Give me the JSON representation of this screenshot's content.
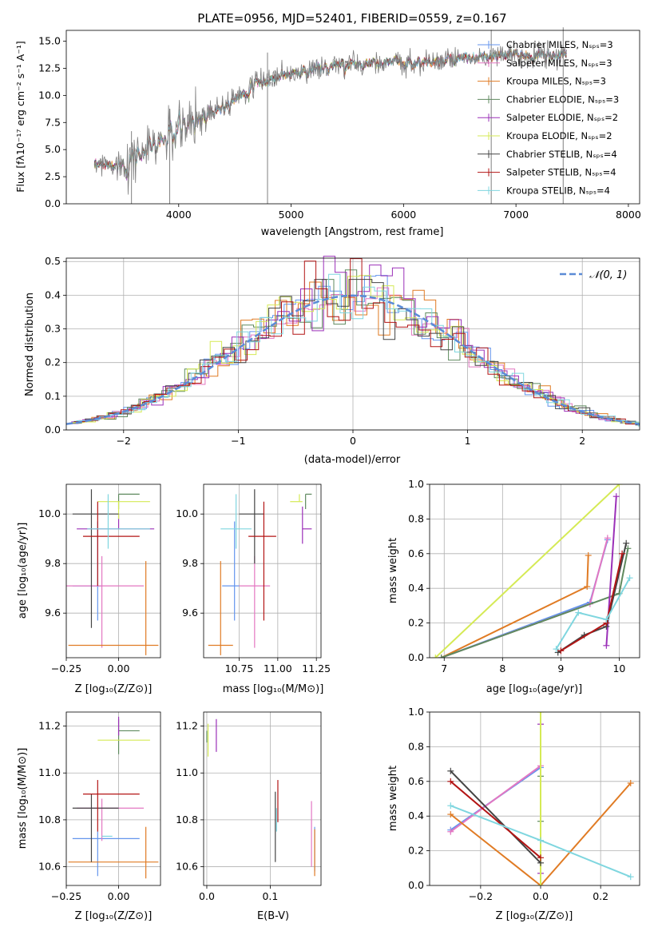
{
  "colors": {
    "miles_chabrier": "#6495ed",
    "miles_salpeter": "#e377c2",
    "miles_kroupa": "#e07b24",
    "elodie_chabrier": "#5f8a5f",
    "elodie_salpeter": "#9b30b8",
    "elodie_kroupa": "#d5ea55",
    "stelib_chabrier": "#444444",
    "stelib_salpeter": "#b31515",
    "stelib_kroupa": "#7fd6df",
    "data": "#808080",
    "normal": "#5b8bd6"
  },
  "chart_data": [
    {
      "id": "spectrum",
      "type": "line",
      "title": "PLATE=0956, MJD=52401, FIBERID=0559, z=0.167",
      "xlabel": "wavelength [Angstrom, rest frame]",
      "ylabel": "Flux [fλ10⁻¹⁷ erg cm⁻² s⁻¹ A⁻¹]",
      "xlim": [
        3000,
        8100
      ],
      "ylim": [
        0,
        16
      ],
      "xticks": [
        4000,
        5000,
        6000,
        7000,
        8000
      ],
      "yticks": [
        0.0,
        2.5,
        5.0,
        7.5,
        10.0,
        12.5,
        15.0
      ],
      "legend_position": "top-right",
      "legend": [
        {
          "label": "Chabrier MILES, Nₛₚₛ=3",
          "color": "#6495ed"
        },
        {
          "label": "Salpeter MILES, Nₛₚₛ=3",
          "color": "#e377c2"
        },
        {
          "label": "Kroupa MILES, Nₛₚₛ=3",
          "color": "#e07b24"
        },
        {
          "label": "Chabrier ELODIE, Nₛₚₛ=3",
          "color": "#5f8a5f"
        },
        {
          "label": "Salpeter ELODIE, Nₛₚₛ=2",
          "color": "#9b30b8"
        },
        {
          "label": "Kroupa ELODIE, Nₛₚₛ=2",
          "color": "#d5ea55"
        },
        {
          "label": "Chabrier STELIB, Nₛₚₛ=4",
          "color": "#444444"
        },
        {
          "label": "Salpeter STELIB, Nₛₚₛ=4",
          "color": "#b31515"
        },
        {
          "label": "Kroupa STELIB, Nₛₚₛ=4",
          "color": "#7fd6df"
        }
      ],
      "continuum": {
        "x": [
          3250,
          3400,
          3550,
          3700,
          3850,
          4000,
          4200,
          4400,
          4600,
          4800,
          5000,
          5200,
          5500,
          5800,
          6100,
          6400,
          6700,
          7000,
          7200,
          7450
        ],
        "y": [
          3.5,
          3.6,
          4.0,
          5.0,
          5.8,
          6.8,
          8.0,
          9.2,
          10.5,
          11.5,
          12.0,
          12.4,
          12.8,
          13.1,
          13.0,
          13.2,
          13.5,
          13.7,
          13.6,
          13.8
        ]
      },
      "spikes": [
        3580,
        3920,
        4790,
        6780,
        7420
      ]
    },
    {
      "id": "residuals",
      "type": "bar",
      "xlabel": "(data-model)/error",
      "ylabel": "Normed distribution",
      "xlim": [
        -2.5,
        2.5
      ],
      "ylim": [
        0,
        0.51
      ],
      "xticks": [
        -2,
        -1,
        0,
        1,
        2
      ],
      "yticks": [
        0.0,
        0.1,
        0.2,
        0.3,
        0.4,
        0.5
      ],
      "legend": [
        {
          "label": "𝒩(0, 1)",
          "color": "#5b8bd6"
        }
      ],
      "legend_position": "top-right",
      "bin_width": 0.1,
      "bin_start": -2.5
    },
    {
      "id": "age-vs-Z",
      "type": "scatter",
      "xlabel": "Z [log₁₀(Z/Z⊙)]",
      "ylabel": "age  [log₁₀(age/yr)]",
      "xlim": [
        -0.25,
        0.2
      ],
      "ylim": [
        9.42,
        10.12
      ],
      "xticks": [
        -0.25,
        0.0
      ],
      "yticks": [
        9.6,
        9.8,
        10.0
      ],
      "points": [
        {
          "series": "Chabrier MILES",
          "x": -0.1,
          "xerr": [
            0.12,
            0.02
          ],
          "y": 9.71,
          "yerr": [
            0.14,
            0.26
          ]
        },
        {
          "series": "Salpeter MILES",
          "x": -0.08,
          "xerr": [
            0.2,
            0.2
          ],
          "y": 9.71,
          "yerr": [
            0.25,
            0.12
          ]
        },
        {
          "series": "Kroupa MILES",
          "x": 0.13,
          "xerr": [
            0.37,
            0.06
          ],
          "y": 9.47,
          "yerr": [
            0.04,
            0.34
          ]
        },
        {
          "series": "Chabrier ELODIE",
          "x": 0.0,
          "xerr": [
            0.0,
            0.1
          ],
          "y": 10.08,
          "yerr": [
            0.06,
            0.0
          ]
        },
        {
          "series": "Salpeter ELODIE",
          "x": 0.0,
          "xerr": [
            0.2,
            0.17
          ],
          "y": 9.94,
          "yerr": [
            0.0,
            0.06
          ]
        },
        {
          "series": "Kroupa ELODIE",
          "x": 0.0,
          "xerr": [
            0.1,
            0.15
          ],
          "y": 10.05,
          "yerr": [
            0.07,
            0.0
          ]
        },
        {
          "series": "Chabrier STELIB",
          "x": -0.13,
          "xerr": [
            0.09,
            0.13
          ],
          "y": 10.0,
          "yerr": [
            0.46,
            0.1
          ]
        },
        {
          "series": "Salpeter STELIB",
          "x": -0.1,
          "xerr": [
            0.07,
            0.2
          ],
          "y": 9.91,
          "yerr": [
            0.2,
            0.14
          ]
        },
        {
          "series": "Kroupa STELIB",
          "x": -0.05,
          "xerr": [
            0.1,
            0.2
          ],
          "y": 9.94,
          "yerr": [
            0.08,
            0.14
          ]
        }
      ]
    },
    {
      "id": "age-vs-mass",
      "type": "scatter",
      "xlabel": "mass [log₁₀(M/M⊙)]",
      "ylabel": "",
      "xlim": [
        10.52,
        11.28
      ],
      "ylim": [
        9.42,
        10.12
      ],
      "xticks": [
        10.75,
        11.0,
        11.25
      ],
      "yticks": [
        9.6,
        9.8,
        10.0
      ],
      "points": [
        {
          "series": "Chabrier MILES",
          "x": 10.72,
          "xerr": [
            0.08,
            0.03
          ],
          "y": 9.71,
          "yerr": [
            0.14,
            0.26
          ]
        },
        {
          "series": "Salpeter MILES",
          "x": 10.85,
          "xerr": [
            0.1,
            0.1
          ],
          "y": 9.71,
          "yerr": [
            0.25,
            0.12
          ]
        },
        {
          "series": "Kroupa MILES",
          "x": 10.63,
          "xerr": [
            0.08,
            0.08
          ],
          "y": 9.47,
          "yerr": [
            0.04,
            0.34
          ]
        },
        {
          "series": "Chabrier ELODIE",
          "x": 11.18,
          "xerr": [
            0.0,
            0.04
          ],
          "y": 10.08,
          "yerr": [
            0.06,
            0.0
          ]
        },
        {
          "series": "Salpeter ELODIE",
          "x": 11.16,
          "xerr": [
            0.0,
            0.06
          ],
          "y": 9.94,
          "yerr": [
            0.06,
            0.09
          ]
        },
        {
          "series": "Kroupa ELODIE",
          "x": 11.14,
          "xerr": [
            0.06,
            0.02
          ],
          "y": 10.05,
          "yerr": [
            0.0,
            0.03
          ]
        },
        {
          "series": "Chabrier STELIB",
          "x": 10.85,
          "xerr": [
            0.1,
            0.06
          ],
          "y": 10.0,
          "yerr": [
            0.2,
            0.1
          ]
        },
        {
          "series": "Salpeter STELIB",
          "x": 10.91,
          "xerr": [
            0.1,
            0.08
          ],
          "y": 9.91,
          "yerr": [
            0.34,
            0.14
          ]
        },
        {
          "series": "Kroupa STELIB",
          "x": 10.73,
          "xerr": [
            0.1,
            0.1
          ],
          "y": 9.94,
          "yerr": [
            0.08,
            0.14
          ]
        }
      ]
    },
    {
      "id": "massweight-vs-age",
      "type": "line",
      "xlabel": "age  [log₁₀(age/yr)]",
      "ylabel": "mass weight",
      "xlim": [
        6.75,
        10.35
      ],
      "ylim": [
        0,
        1
      ],
      "xticks": [
        7,
        8,
        9,
        10
      ],
      "yticks": [
        0.0,
        0.2,
        0.4,
        0.6,
        0.8,
        1.0
      ],
      "series": [
        {
          "name": "Chabrier MILES",
          "points": [
            [
              6.95,
              0.0
            ],
            [
              9.5,
              0.32
            ],
            [
              9.8,
              0.68
            ]
          ]
        },
        {
          "name": "Salpeter MILES",
          "points": [
            [
              6.95,
              0.0
            ],
            [
              9.5,
              0.31
            ],
            [
              9.8,
              0.69
            ]
          ]
        },
        {
          "name": "Kroupa MILES",
          "points": [
            [
              6.95,
              0.0
            ],
            [
              9.45,
              0.41
            ],
            [
              9.47,
              0.59
            ]
          ]
        },
        {
          "name": "Chabrier ELODIE",
          "points": [
            [
              6.95,
              0.0
            ],
            [
              10.0,
              0.37
            ],
            [
              10.15,
              0.63
            ]
          ]
        },
        {
          "name": "Salpeter ELODIE",
          "points": [
            [
              9.78,
              0.07
            ],
            [
              9.95,
              0.93
            ]
          ]
        },
        {
          "name": "Kroupa ELODIE",
          "points": [
            [
              6.85,
              0.0
            ],
            [
              10.0,
              1.0
            ]
          ]
        },
        {
          "name": "Chabrier STELIB",
          "points": [
            [
              8.95,
              0.03
            ],
            [
              9.4,
              0.13
            ],
            [
              9.78,
              0.18
            ],
            [
              10.12,
              0.66
            ]
          ]
        },
        {
          "name": "Salpeter STELIB",
          "points": [
            [
              9.0,
              0.04
            ],
            [
              9.78,
              0.2
            ],
            [
              10.05,
              0.6
            ]
          ]
        },
        {
          "name": "Kroupa STELIB",
          "points": [
            [
              8.92,
              0.05
            ],
            [
              9.3,
              0.26
            ],
            [
              9.78,
              0.22
            ],
            [
              10.18,
              0.46
            ]
          ]
        }
      ]
    },
    {
      "id": "mass-vs-Z",
      "type": "scatter",
      "xlabel": "Z [log₁₀(Z/Z⊙)]",
      "ylabel": "mass [log₁₀(M/M⊙)]",
      "xlim": [
        -0.25,
        0.2
      ],
      "ylim": [
        10.52,
        11.26
      ],
      "xticks": [
        -0.25,
        0.0
      ],
      "yticks": [
        10.6,
        10.8,
        11.0,
        11.2
      ],
      "points": [
        {
          "series": "Chabrier MILES",
          "x": -0.1,
          "xerr": [
            0.12,
            0.2
          ],
          "y": 10.72,
          "yerr": [
            0.16,
            0.03
          ]
        },
        {
          "series": "Salpeter MILES",
          "x": -0.08,
          "xerr": [
            0.12,
            0.2
          ],
          "y": 10.85,
          "yerr": [
            0.14,
            0.04
          ]
        },
        {
          "series": "Kroupa MILES",
          "x": 0.13,
          "xerr": [
            0.37,
            0.06
          ],
          "y": 10.62,
          "yerr": [
            0.07,
            0.15
          ]
        },
        {
          "series": "Chabrier ELODIE",
          "x": 0.0,
          "xerr": [
            0.0,
            0.1
          ],
          "y": 11.18,
          "yerr": [
            0.1,
            0.05
          ]
        },
        {
          "series": "Salpeter ELODIE",
          "x": 0.0,
          "xerr": [
            0.0,
            0.0
          ],
          "y": 11.16,
          "yerr": [
            0.0,
            0.08
          ]
        },
        {
          "series": "Kroupa ELODIE",
          "x": 0.0,
          "xerr": [
            0.1,
            0.15
          ],
          "y": 11.14,
          "yerr": [
            0.0,
            0.0
          ]
        },
        {
          "series": "Chabrier STELIB",
          "x": -0.13,
          "xerr": [
            0.09,
            0.13
          ],
          "y": 10.85,
          "yerr": [
            0.23,
            0.06
          ]
        },
        {
          "series": "Salpeter STELIB",
          "x": -0.1,
          "xerr": [
            0.07,
            0.2
          ],
          "y": 10.91,
          "yerr": [
            0.16,
            0.06
          ]
        },
        {
          "series": "Kroupa STELIB",
          "x": -0.05,
          "xerr": [
            0.03,
            0.02
          ],
          "y": 10.73,
          "yerr": [
            0.0,
            0.0
          ]
        }
      ]
    },
    {
      "id": "mass-vs-EBV",
      "type": "scatter",
      "xlabel": "E(B-V)",
      "ylabel": "",
      "xlim": [
        -0.005,
        0.18
      ],
      "ylim": [
        10.52,
        11.26
      ],
      "xticks": [
        0.0,
        0.1
      ],
      "yticks": [
        10.6,
        10.8,
        11.0,
        11.2
      ],
      "points": [
        {
          "series": "Chabrier MILES",
          "x": 0.17,
          "y": 10.65,
          "yerr": [
            0.07,
            0.12
          ]
        },
        {
          "series": "Salpeter MILES",
          "x": 0.165,
          "y": 10.7,
          "yerr": [
            0.1,
            0.18
          ]
        },
        {
          "series": "Kroupa MILES",
          "x": 0.17,
          "y": 10.66,
          "yerr": [
            0.1,
            0.1
          ]
        },
        {
          "series": "Chabrier ELODIE",
          "x": 0.0,
          "y": 11.18,
          "yerr": [
            0.05,
            0.0
          ]
        },
        {
          "series": "Salpeter ELODIE",
          "x": 0.015,
          "y": 11.16,
          "yerr": [
            0.07,
            0.07
          ]
        },
        {
          "series": "Kroupa ELODIE",
          "x": 0.002,
          "y": 11.13,
          "yerr": [
            0.06,
            0.08
          ]
        },
        {
          "series": "Chabrier STELIB",
          "x": 0.108,
          "y": 10.77,
          "yerr": [
            0.15,
            0.15
          ]
        },
        {
          "series": "Salpeter STELIB",
          "x": 0.112,
          "y": 10.85,
          "yerr": [
            0.06,
            0.12
          ]
        },
        {
          "series": "Kroupa STELIB",
          "x": 0.11,
          "y": 10.8,
          "yerr": [
            0.05,
            0.05
          ]
        }
      ]
    },
    {
      "id": "massweight-vs-Z",
      "type": "line",
      "xlabel": "Z [log₁₀(Z/Z⊙)]",
      "ylabel": "mass weight",
      "xlim": [
        -0.37,
        0.33
      ],
      "ylim": [
        0,
        1
      ],
      "xticks": [
        -0.2,
        0.0,
        0.2
      ],
      "yticks": [
        0.0,
        0.2,
        0.4,
        0.6,
        0.8,
        1.0
      ],
      "series": [
        {
          "name": "Chabrier MILES",
          "points": [
            [
              -0.3,
              0.32
            ],
            [
              0.0,
              0.68
            ]
          ]
        },
        {
          "name": "Salpeter MILES",
          "points": [
            [
              -0.3,
              0.31
            ],
            [
              0.0,
              0.69
            ]
          ]
        },
        {
          "name": "Kroupa MILES",
          "points": [
            [
              -0.3,
              0.41
            ],
            [
              0.0,
              0.0
            ],
            [
              0.3,
              0.59
            ]
          ]
        },
        {
          "name": "Chabrier ELODIE",
          "points": [
            [
              0.0,
              0.37
            ],
            [
              0.0,
              0.63
            ]
          ]
        },
        {
          "name": "Salpeter ELODIE",
          "points": [
            [
              0.0,
              0.07
            ],
            [
              0.0,
              0.93
            ]
          ]
        },
        {
          "name": "Kroupa ELODIE",
          "points": [
            [
              0.0,
              0.0
            ],
            [
              0.0,
              1.0
            ]
          ]
        },
        {
          "name": "Chabrier STELIB",
          "points": [
            [
              -0.3,
              0.66
            ],
            [
              0.0,
              0.13
            ]
          ]
        },
        {
          "name": "Salpeter STELIB",
          "points": [
            [
              -0.3,
              0.6
            ],
            [
              0.0,
              0.16
            ]
          ]
        },
        {
          "name": "Kroupa STELIB",
          "points": [
            [
              -0.3,
              0.46
            ],
            [
              0.0,
              0.26
            ],
            [
              0.3,
              0.05
            ]
          ]
        }
      ]
    }
  ]
}
